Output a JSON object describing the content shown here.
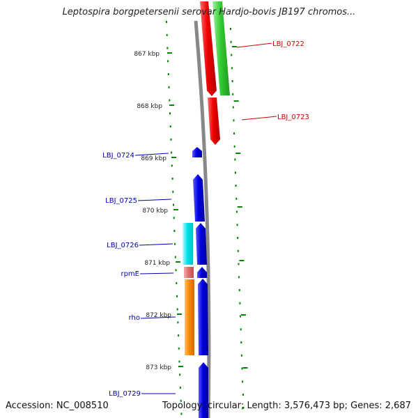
{
  "title": "Leptospira borgpetersenii serovar Hardjo-bovis JB197 chromos...",
  "footer": {
    "accession": "Accession: NC_008510",
    "summary": "Topology: circular; Length: 3,576,473 bp; Genes: 2,687"
  },
  "ticks": [
    "867 kbp",
    "868 kbp",
    "869 kbp",
    "870 kbp",
    "871 kbp",
    "872 kbp",
    "873 kbp"
  ],
  "genes": {
    "forward": [
      {
        "name": "LBJ_0722",
        "color": "#dd0000"
      },
      {
        "name": "LBJ_0723",
        "color": "#dd0000"
      }
    ],
    "reverse": [
      {
        "name": "LBJ_0724",
        "color": "#0000cc"
      },
      {
        "name": "LBJ_0725",
        "color": "#0000cc"
      },
      {
        "name": "LBJ_0726",
        "color": "#0000cc"
      },
      {
        "name": "rpmE",
        "color": "#0000cc"
      },
      {
        "name": "rho",
        "color": "#0000cc"
      },
      {
        "name": "LBJ_0729",
        "color": "#0000cc"
      }
    ]
  },
  "colors": {
    "backbone": "#888888",
    "cog_green": "#33cc33",
    "cog_cyan": "#00e5ee",
    "cog_pink": "#e07070",
    "cog_orange": "#ff8800",
    "cds_red": "#ee0000",
    "cds_blue": "#0000dd",
    "tick_green": "#008800",
    "label_red": "#cc0000",
    "label_blue": "#0000aa"
  }
}
